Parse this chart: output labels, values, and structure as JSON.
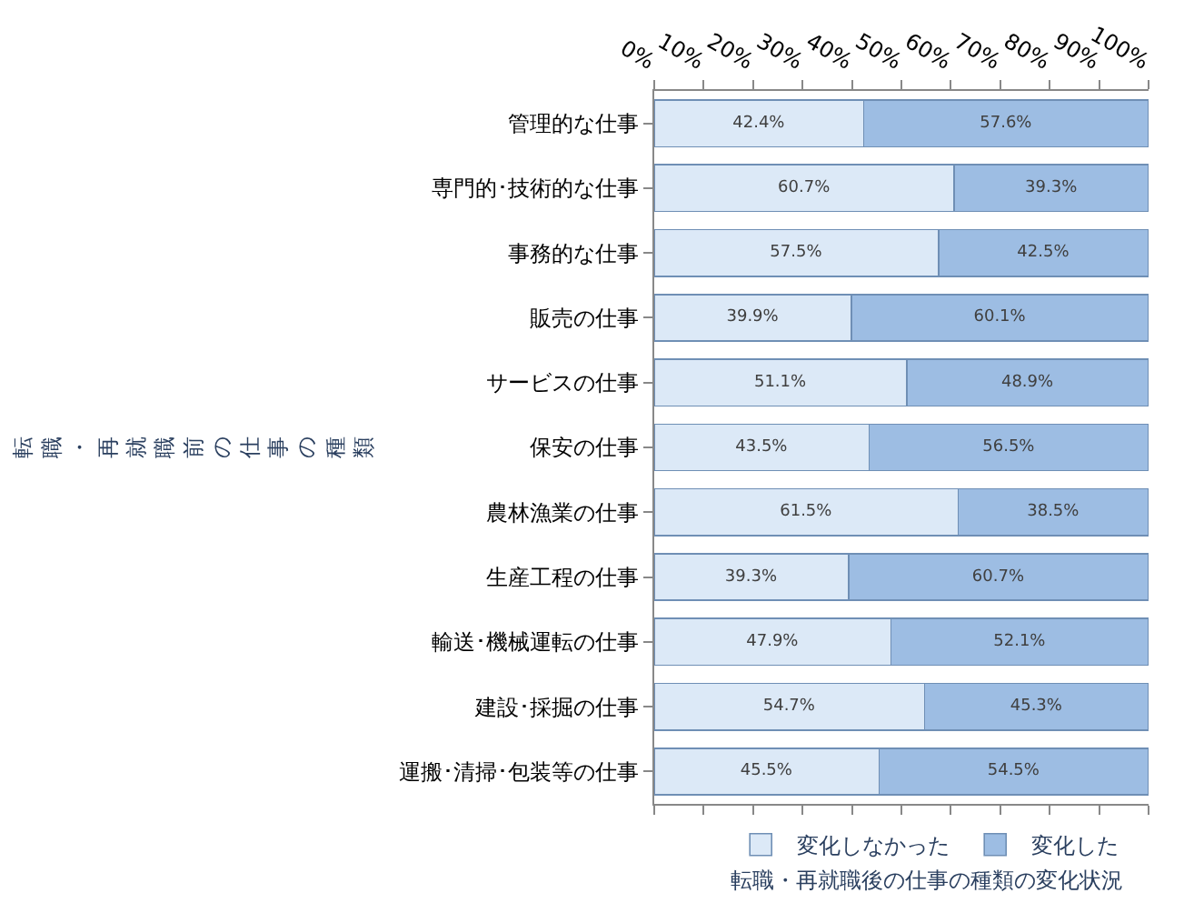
{
  "chart_data": {
    "type": "bar",
    "orientation": "horizontal",
    "stacked": true,
    "categories": [
      "管理的な仕事",
      "専門的･技術的な仕事",
      "事務的な仕事",
      "販売の仕事",
      "サービスの仕事",
      "保安の仕事",
      "農林漁業の仕事",
      "生産工程の仕事",
      "輸送･機械運転の仕事",
      "建設･採掘の仕事",
      "運搬･清掃･包装等の仕事"
    ],
    "series": [
      {
        "name": "変化しなかった",
        "color": "#dce9f7",
        "values": [
          42.4,
          60.7,
          57.5,
          39.9,
          51.1,
          43.5,
          61.5,
          39.3,
          47.9,
          54.7,
          45.5
        ],
        "value_labels": [
          "42.4%",
          "60.7%",
          "57.5%",
          "39.9%",
          "51.1%",
          "43.5%",
          "61.5%",
          "39.3%",
          "47.9%",
          "54.7%",
          "45.5%"
        ]
      },
      {
        "name": "変化した",
        "color": "#9dbde3",
        "values": [
          57.6,
          39.3,
          42.5,
          60.1,
          48.9,
          56.5,
          38.5,
          60.7,
          52.1,
          45.3,
          54.5
        ],
        "value_labels": [
          "57.6%",
          "39.3%",
          "42.5%",
          "60.1%",
          "48.9%",
          "56.5%",
          "38.5%",
          "60.7%",
          "52.1%",
          "45.3%",
          "54.5%"
        ]
      }
    ],
    "xlim": [
      0,
      100
    ],
    "xticks": [
      {
        "value": 0,
        "label": "0%"
      },
      {
        "value": 10,
        "label": "10%"
      },
      {
        "value": 20,
        "label": "20%"
      },
      {
        "value": 30,
        "label": "30%"
      },
      {
        "value": 40,
        "label": "40%"
      },
      {
        "value": 50,
        "label": "50%"
      },
      {
        "value": 60,
        "label": "60%"
      },
      {
        "value": 70,
        "label": "70%"
      },
      {
        "value": 80,
        "label": "80%"
      },
      {
        "value": 90,
        "label": "90%"
      },
      {
        "value": 100,
        "label": "100%"
      }
    ],
    "ylabel": "転職・再就職前の仕事の種類",
    "xlabel": "転職・再就職後の仕事の種類の変化状況",
    "legend": "bottom",
    "grid": false
  }
}
